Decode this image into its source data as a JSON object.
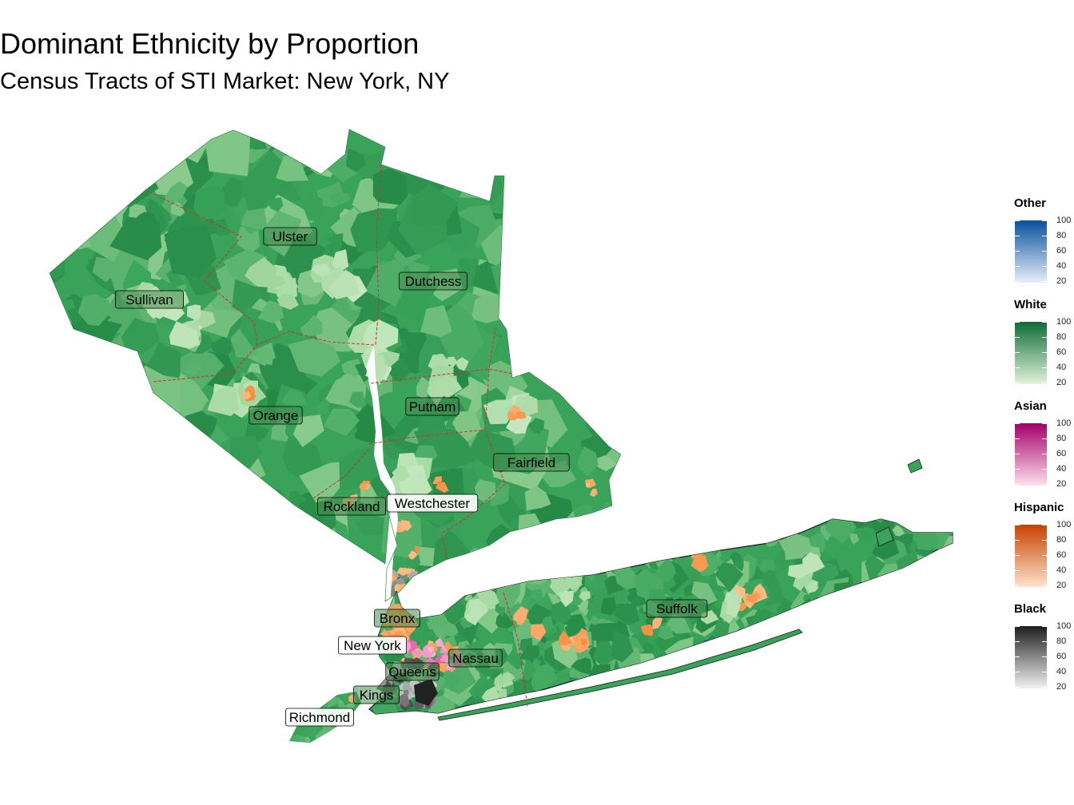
{
  "title": "Dominant Ethnicity by Proportion",
  "subtitle": "Census Tracts of STI Market: New York, NY",
  "counties": [
    {
      "name": "Ulster",
      "box": "dark"
    },
    {
      "name": "Dutchess",
      "box": "dark"
    },
    {
      "name": "Sullivan",
      "box": "dark"
    },
    {
      "name": "Orange",
      "box": "dark"
    },
    {
      "name": "Putnam",
      "box": "dark"
    },
    {
      "name": "Fairfield",
      "box": "dark"
    },
    {
      "name": "Rockland",
      "box": "dark"
    },
    {
      "name": "Westchester",
      "box": "light"
    },
    {
      "name": "Bronx",
      "box": "dark"
    },
    {
      "name": "New York",
      "box": "light"
    },
    {
      "name": "Nassau",
      "box": "dark"
    },
    {
      "name": "Queens",
      "box": "dark"
    },
    {
      "name": "Kings",
      "box": "dark"
    },
    {
      "name": "Richmond",
      "box": "light"
    },
    {
      "name": "Suffolk",
      "box": "dark"
    }
  ],
  "legend": [
    {
      "title": "Other",
      "low": "#e6eef8",
      "high": "#08519c",
      "ticks": [
        "100",
        "80",
        "60",
        "40",
        "20"
      ]
    },
    {
      "title": "White",
      "low": "#e2f4dc",
      "high": "#0e6b34",
      "ticks": [
        "100",
        "80",
        "60",
        "40",
        "20"
      ]
    },
    {
      "title": "Asian",
      "low": "#fde0ec",
      "high": "#a3006b",
      "ticks": [
        "100",
        "80",
        "60",
        "40",
        "20"
      ]
    },
    {
      "title": "Hispanic",
      "low": "#fde3cc",
      "high": "#c74200",
      "ticks": [
        "100",
        "80",
        "60",
        "40",
        "20"
      ]
    },
    {
      "title": "Black",
      "low": "#f2f2f2",
      "high": "#1e1e1e",
      "ticks": [
        "100",
        "80",
        "60",
        "40",
        "20"
      ]
    }
  ],
  "colors": {
    "white_base": "#3aa35a",
    "white_dark": "#268a47",
    "white_light": "#9fd69a",
    "boundary": "#d32f2f",
    "hispanic": "#f58a3a",
    "asian": "#e85aa8",
    "black": "#404040"
  }
}
